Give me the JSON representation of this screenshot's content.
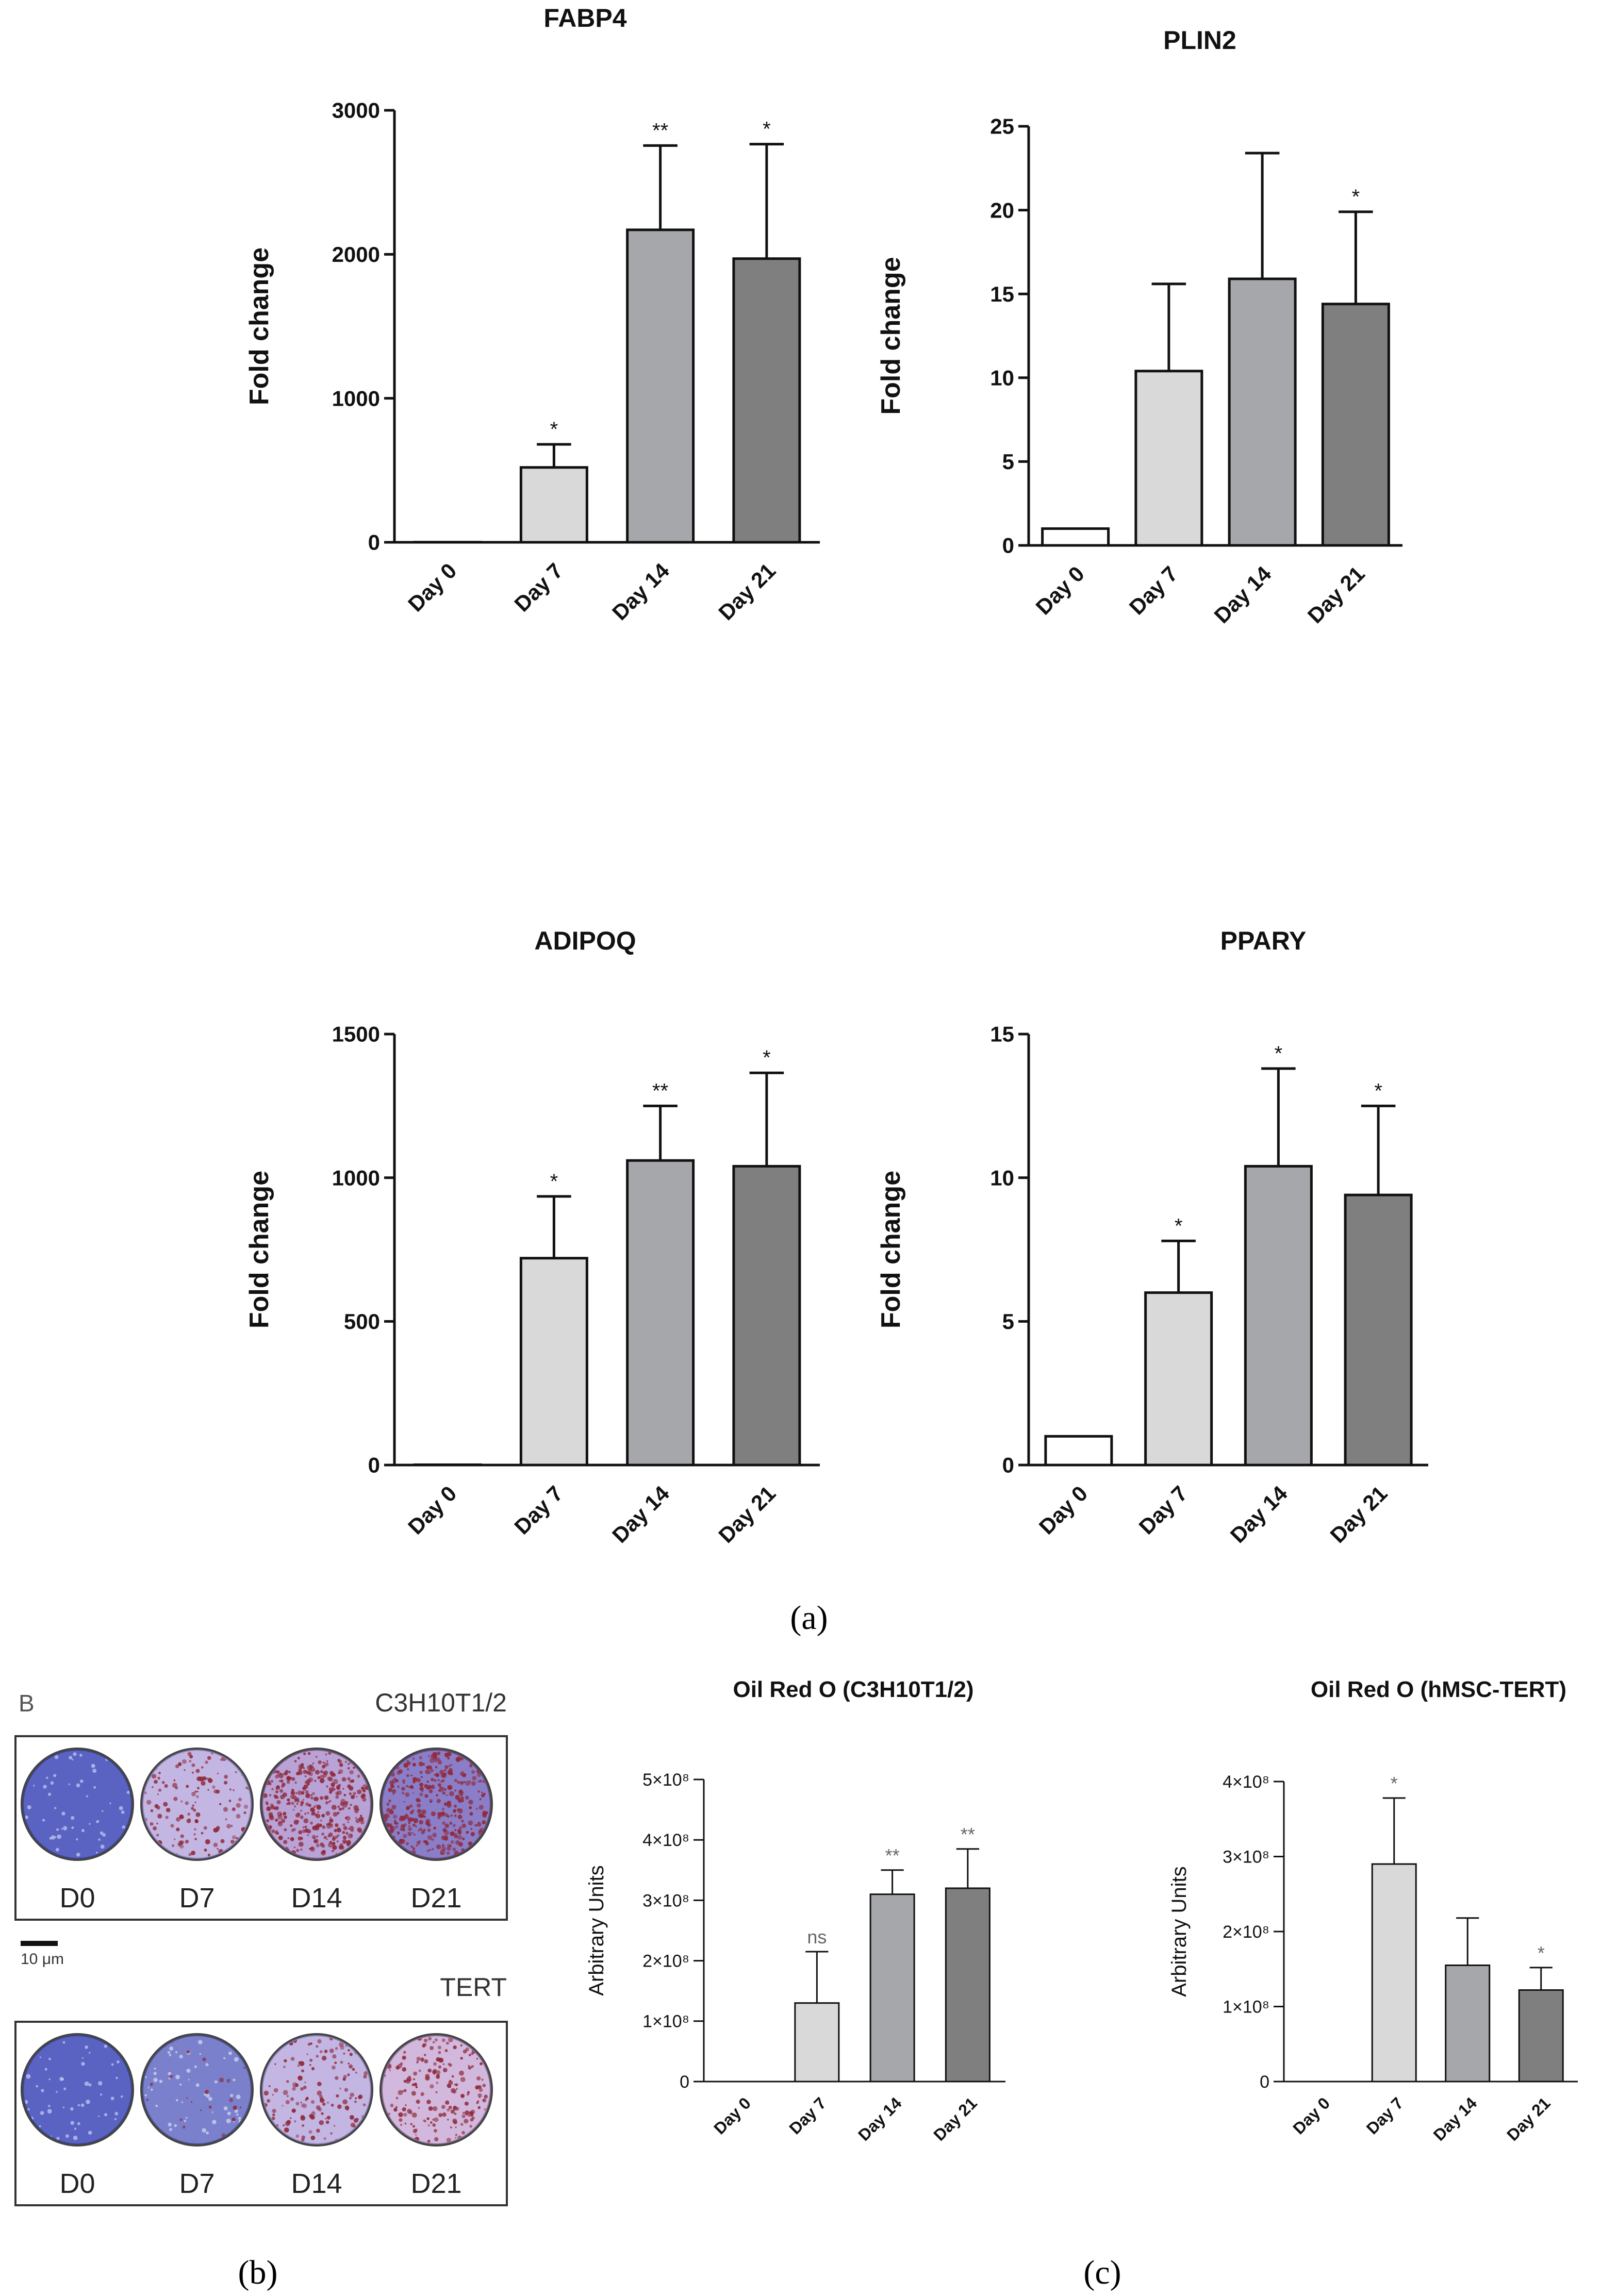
{
  "chart_data": [
    {
      "id": "fabp4",
      "type": "bar",
      "title": "FABP4",
      "ylabel": "Fold change",
      "xlabel": "",
      "categories": [
        "Day 0",
        "Day 7",
        "Day 14",
        "Day 21"
      ],
      "values": [
        1,
        520,
        2170,
        1970
      ],
      "errors": [
        0,
        160,
        585,
        795
      ],
      "significance": [
        "",
        "*",
        "**",
        "*"
      ],
      "ylim": [
        0,
        3000
      ],
      "yticks": [
        0,
        1000,
        2000,
        3000
      ],
      "ytick_labels": [
        "0",
        "1000",
        "2000",
        "3000"
      ],
      "bar_colors": [
        "#ffffff",
        "#d9d9d9",
        "#a6a7aa",
        "#7f7f7f"
      ]
    },
    {
      "id": "plin2",
      "type": "bar",
      "title": "PLIN2",
      "ylabel": "Fold change",
      "xlabel": "",
      "categories": [
        "Day 0",
        "Day 7",
        "Day 14",
        "Day 21"
      ],
      "values": [
        1,
        10.4,
        15.9,
        14.4
      ],
      "errors": [
        0,
        5.2,
        7.5,
        5.5
      ],
      "significance": [
        "",
        "",
        "",
        "*"
      ],
      "ylim": [
        0,
        25
      ],
      "yticks": [
        0,
        5,
        10,
        15,
        20,
        25
      ],
      "ytick_labels": [
        "0",
        "5",
        "10",
        "15",
        "20",
        "25"
      ],
      "bar_colors": [
        "#ffffff",
        "#d9d9d9",
        "#a6a7aa",
        "#7f7f7f"
      ]
    },
    {
      "id": "adipoq",
      "type": "bar",
      "title": "ADIPOQ",
      "ylabel": "Fold change",
      "xlabel": "",
      "categories": [
        "Day 0",
        "Day 7",
        "Day 14",
        "Day 21"
      ],
      "values": [
        1,
        720,
        1060,
        1040
      ],
      "errors": [
        0,
        215,
        190,
        325
      ],
      "significance": [
        "",
        "*",
        "**",
        "*"
      ],
      "ylim": [
        0,
        1500
      ],
      "yticks": [
        0,
        500,
        1000,
        1500
      ],
      "ytick_labels": [
        "0",
        "500",
        "1000",
        "1500"
      ],
      "bar_colors": [
        "#ffffff",
        "#d9d9d9",
        "#a6a7aa",
        "#7f7f7f"
      ]
    },
    {
      "id": "ppary",
      "type": "bar",
      "title": "PPARY",
      "ylabel": "Fold change",
      "xlabel": "",
      "categories": [
        "Day 0",
        "Day 7",
        "Day 14",
        "Day 21"
      ],
      "values": [
        1,
        6.0,
        10.4,
        9.4
      ],
      "errors": [
        0,
        1.8,
        3.4,
        3.1
      ],
      "significance": [
        "",
        "*",
        "*",
        "*"
      ],
      "ylim": [
        0,
        15
      ],
      "yticks": [
        0,
        5,
        10,
        15
      ],
      "ytick_labels": [
        "0",
        "5",
        "10",
        "15"
      ],
      "bar_colors": [
        "#ffffff",
        "#d9d9d9",
        "#a6a7aa",
        "#7f7f7f"
      ]
    },
    {
      "id": "oro_c3h",
      "type": "bar",
      "title": "Oil Red O (C3H10T1/2)",
      "ylabel": "Arbitrary Units",
      "xlabel": "",
      "categories": [
        "Day 0",
        "Day 7",
        "Day 14",
        "Day 21"
      ],
      "values": [
        0,
        130000000,
        310000000,
        320000000
      ],
      "errors": [
        0,
        85000000,
        40000000,
        65000000
      ],
      "significance": [
        "",
        "ns",
        "**",
        "**"
      ],
      "ylim": [
        0,
        500000000
      ],
      "yticks": [
        0,
        100000000,
        200000000,
        300000000,
        400000000,
        500000000
      ],
      "ytick_labels": [
        "0",
        "1×10⁸",
        "2×10⁸",
        "3×10⁸",
        "4×10⁸",
        "5×10⁸"
      ],
      "bar_colors": [
        "#ffffff",
        "#d9d9d9",
        "#a6a7aa",
        "#7f7f7f"
      ]
    },
    {
      "id": "oro_hmsc",
      "type": "bar",
      "title": "Oil Red O (hMSC-TERT)",
      "ylabel": "Arbitrary Units",
      "xlabel": "",
      "categories": [
        "Day 0",
        "Day 7",
        "Day 14",
        "Day 21"
      ],
      "values": [
        0,
        290000000,
        155000000,
        122000000
      ],
      "errors": [
        0,
        88000000,
        63000000,
        30000000
      ],
      "significance": [
        "",
        "*",
        "",
        "*"
      ],
      "ylim": [
        0,
        400000000
      ],
      "yticks": [
        0,
        100000000,
        200000000,
        300000000,
        400000000
      ],
      "ytick_labels": [
        "0",
        "1×10⁸",
        "2×10⁸",
        "3×10⁸",
        "4×10⁸"
      ],
      "bar_colors": [
        "#ffffff",
        "#d9d9d9",
        "#a6a7aa",
        "#7f7f7f"
      ]
    }
  ],
  "panel_b": {
    "letter": "B",
    "top_label": "C3H10T1/2",
    "bottom_label": "TERT",
    "scale_bar": "10 μm",
    "top_wells": [
      {
        "label": "D0",
        "stain": "blue"
      },
      {
        "label": "D7",
        "stain": "light-purple"
      },
      {
        "label": "D14",
        "stain": "red-dense"
      },
      {
        "label": "D21",
        "stain": "red-dense-blue"
      }
    ],
    "bottom_wells": [
      {
        "label": "D0",
        "stain": "blue"
      },
      {
        "label": "D7",
        "stain": "blue-light"
      },
      {
        "label": "D14",
        "stain": "light-purple"
      },
      {
        "label": "D21",
        "stain": "pink-red"
      }
    ]
  },
  "captions": {
    "a": "(a)",
    "b": "(b)",
    "c": "(c)"
  }
}
